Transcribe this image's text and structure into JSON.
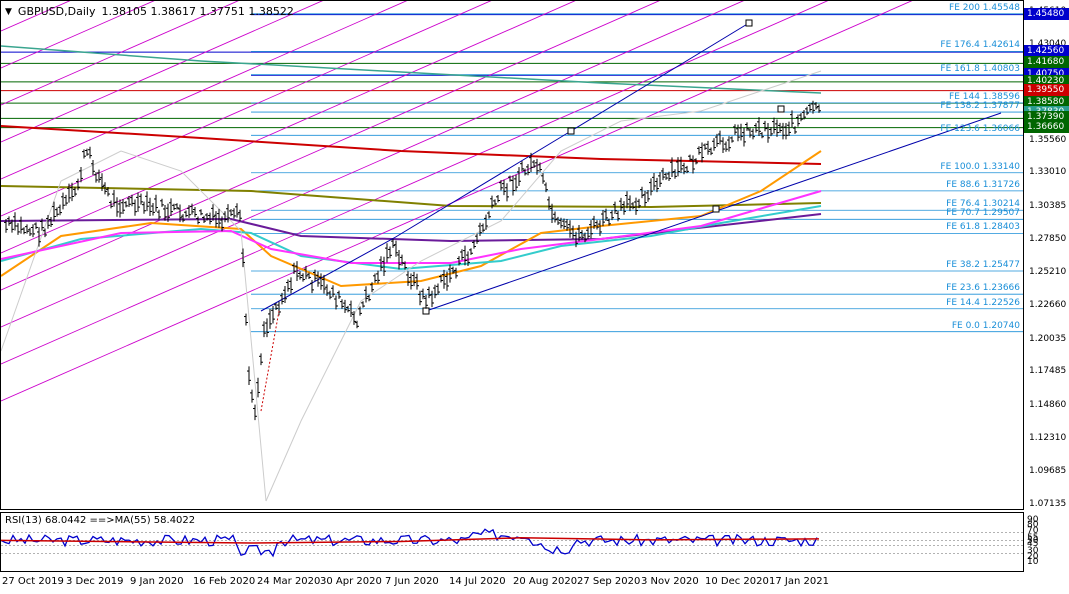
{
  "chart": {
    "symbol": "GBPUSD,Daily",
    "ohlc": "1.38105 1.38617 1.37751 1.38522",
    "dropdown_icon": "triangle-down-icon"
  },
  "rsi": {
    "label": "RSI(13) 68.0442 ==>MA(55) 58.4022",
    "scale_ticks": [
      "90",
      "80",
      "70",
      "55",
      "50",
      "45",
      "30",
      "20",
      "10"
    ]
  },
  "price_scale": {
    "ticks": [
      "1.45610",
      "1.43040",
      "1.40430",
      "1.38000",
      "1.35560",
      "1.33010",
      "1.30385",
      "1.27850",
      "1.25210",
      "1.22660",
      "1.20035",
      "1.17485",
      "1.14860",
      "1.12310",
      "1.09685",
      "1.07135"
    ],
    "badges": [
      {
        "text": "1.45480",
        "color": "#0000cc"
      },
      {
        "text": "1.42560",
        "color": "#0000cc"
      },
      {
        "text": "1.41680",
        "color": "#006600"
      },
      {
        "text": "1.40750",
        "color": "#0000cc"
      },
      {
        "text": "1.40230",
        "color": "#006600"
      },
      {
        "text": "1.39550",
        "color": "#cc0000"
      },
      {
        "text": "1.38580",
        "color": "#006600"
      },
      {
        "text": "1.37830",
        "color": "#2a9d8f"
      },
      {
        "text": "1.37390",
        "color": "#006600"
      },
      {
        "text": "1.36660",
        "color": "#006600"
      }
    ]
  },
  "fib_labels": [
    "FE 200 1.45548",
    "FE 176.4 1.42614",
    "FE 161.8 1.40803",
    "FE 144 1.38596",
    "FE 138.2 1.37877",
    "FE 123.6 1.36066",
    "FE 100.0 1.33140",
    "FE 88.6 1.31726",
    "FE 76.4 1.30214",
    "FE 70.7 1.29507",
    "FE 61.8 1.28403",
    "FE 38.2 1.25477",
    "FE 23.6 1.23666",
    "FE 14.4 1.22526",
    "FE 0.0 1.20740"
  ],
  "time_axis": [
    "27 Oct 2019",
    "3 Dec 2019",
    "9 Jan 2020",
    "16 Feb 2020",
    "24 Mar 2020",
    "30 Apr 2020",
    "7 Jun 2020",
    "14 Jul 2020",
    "20 Aug 2020",
    "27 Sep 2020",
    "3 Nov 2020",
    "10 Dec 2020",
    "17 Jan 2021"
  ],
  "colors": {
    "fib": "#1a8fd8",
    "channel": "#cc00cc",
    "trend": "#0000aa",
    "ma_red": "#cc0000",
    "ma_olive": "#808000",
    "ma_purple": "#6a1b9a",
    "ma_orange": "#ff9900",
    "ma_cyan": "#33cccc",
    "ma_magenta": "#ff33ff",
    "ma_teal": "#3aa58f",
    "rsi_line": "#0000cc",
    "rsi_ma": "#cc0000"
  }
}
